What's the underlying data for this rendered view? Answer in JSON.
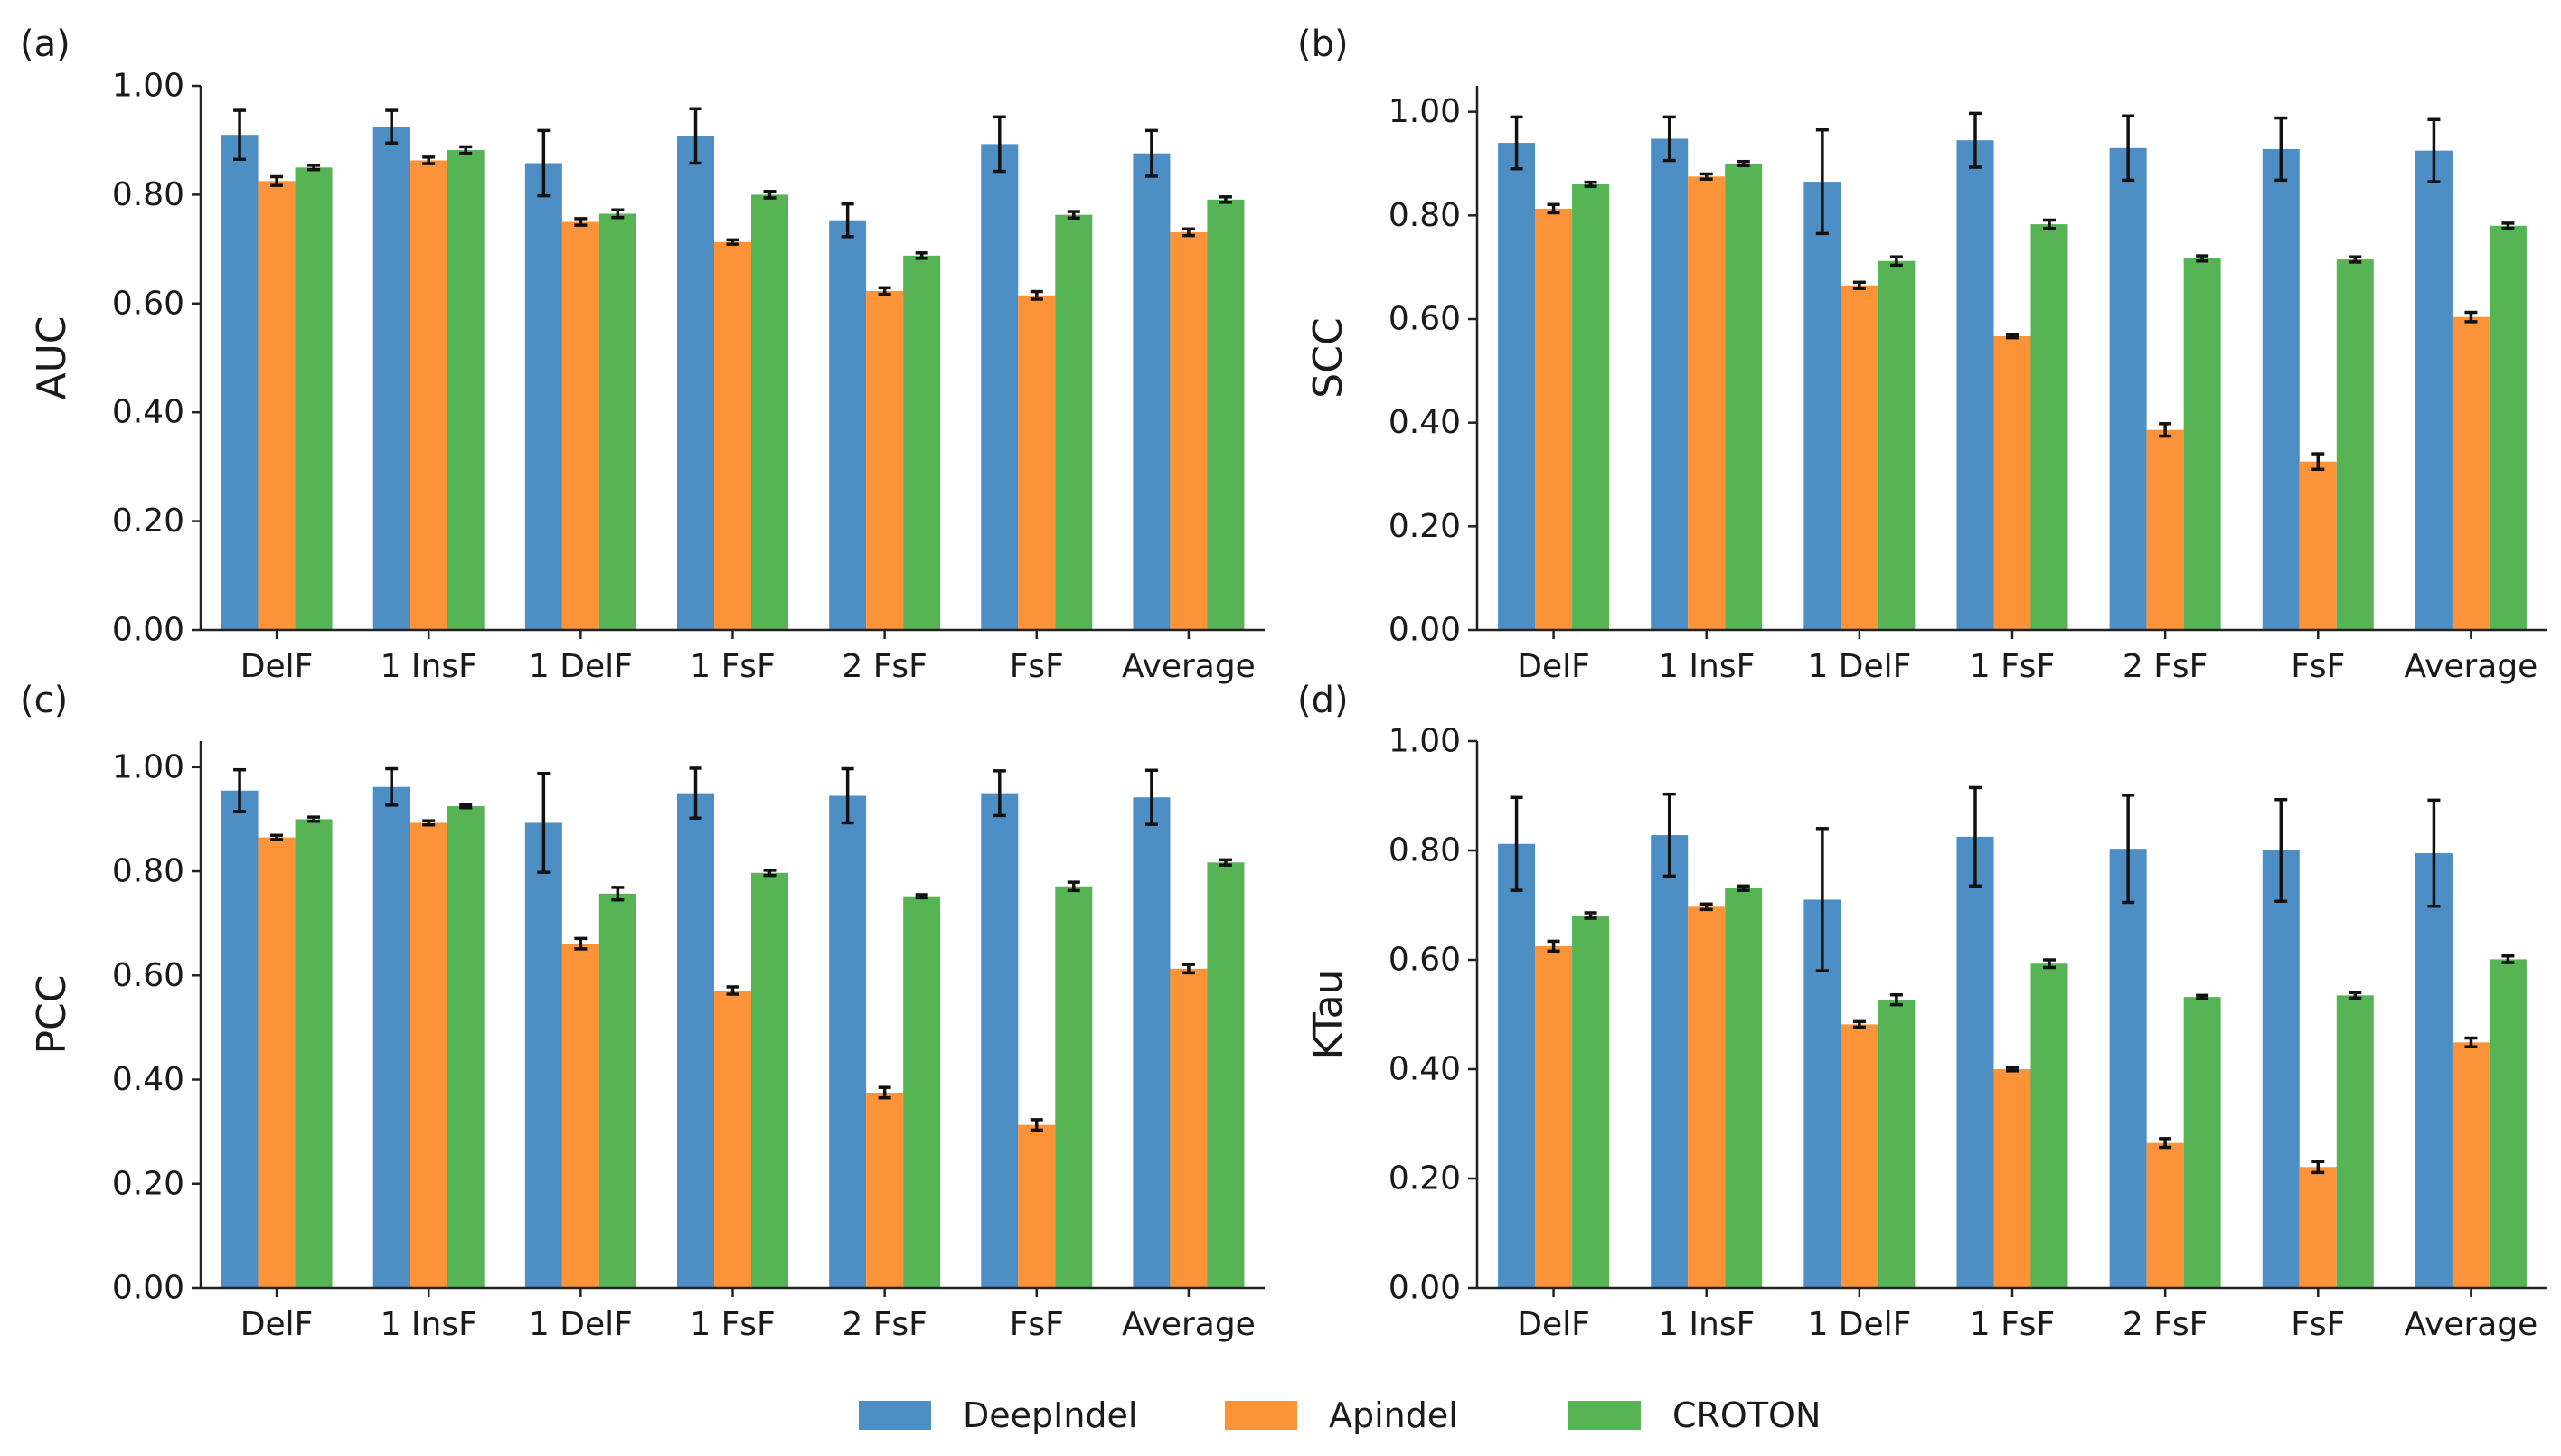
{
  "colors": {
    "DeepIndel": "#4d8fc4",
    "Apindel": "#fc9338",
    "CROTON": "#56b455",
    "axis": "#222222",
    "errorbar": "#111111"
  },
  "legend": [
    {
      "name": "DeepIndel",
      "color": "#4d8fc4"
    },
    {
      "name": "Apindel",
      "color": "#fc9338"
    },
    {
      "name": "CROTON",
      "color": "#56b455"
    }
  ],
  "chart_data": [
    {
      "panel": "(a)",
      "type": "bar",
      "title": "",
      "xlabel": "",
      "ylabel": "AUC",
      "ylim": [
        0,
        1.0
      ],
      "yticks": [
        "0.00",
        "0.20",
        "0.40",
        "0.60",
        "0.80",
        "1.00"
      ],
      "categories": [
        "DelF",
        "1 InsF",
        "1 DelF",
        "1 FsF",
        "2 FsF",
        "FsF",
        "Average"
      ],
      "series": [
        {
          "name": "DeepIndel",
          "values": [
            0.91,
            0.925,
            0.858,
            0.908,
            0.753,
            0.893,
            0.876
          ],
          "errors": [
            0.045,
            0.03,
            0.06,
            0.05,
            0.03,
            0.05,
            0.042
          ]
        },
        {
          "name": "Apindel",
          "values": [
            0.825,
            0.863,
            0.75,
            0.713,
            0.623,
            0.615,
            0.731
          ],
          "errors": [
            0.008,
            0.006,
            0.006,
            0.004,
            0.006,
            0.007,
            0.006
          ]
        },
        {
          "name": "CROTON",
          "values": [
            0.85,
            0.882,
            0.765,
            0.8,
            0.688,
            0.763,
            0.791
          ],
          "errors": [
            0.004,
            0.006,
            0.007,
            0.006,
            0.005,
            0.006,
            0.005
          ]
        }
      ]
    },
    {
      "panel": "(b)",
      "type": "bar",
      "title": "",
      "xlabel": "",
      "ylabel": "SCC",
      "ylim": [
        0,
        1.05
      ],
      "yticks": [
        "0.00",
        "0.20",
        "0.40",
        "0.60",
        "0.80",
        "1.00"
      ],
      "categories": [
        "DelF",
        "1 InsF",
        "1 DelF",
        "1 FsF",
        "2 FsF",
        "FsF",
        "Average"
      ],
      "series": [
        {
          "name": "DeepIndel",
          "values": [
            0.94,
            0.948,
            0.865,
            0.945,
            0.93,
            0.928,
            0.925
          ],
          "errors": [
            0.05,
            0.042,
            0.1,
            0.052,
            0.062,
            0.06,
            0.06
          ]
        },
        {
          "name": "Apindel",
          "values": [
            0.813,
            0.875,
            0.665,
            0.567,
            0.386,
            0.325,
            0.604
          ],
          "errors": [
            0.008,
            0.005,
            0.006,
            0.003,
            0.012,
            0.015,
            0.009
          ]
        },
        {
          "name": "CROTON",
          "values": [
            0.86,
            0.9,
            0.712,
            0.783,
            0.717,
            0.715,
            0.78
          ],
          "errors": [
            0.004,
            0.004,
            0.008,
            0.008,
            0.005,
            0.005,
            0.005
          ]
        }
      ]
    },
    {
      "panel": "(c)",
      "type": "bar",
      "title": "",
      "xlabel": "",
      "ylabel": "PCC",
      "ylim": [
        0,
        1.05
      ],
      "yticks": [
        "0.00",
        "0.20",
        "0.40",
        "0.60",
        "0.80",
        "1.00"
      ],
      "categories": [
        "DelF",
        "1 InsF",
        "1 DelF",
        "1 FsF",
        "2 FsF",
        "FsF",
        "Average"
      ],
      "series": [
        {
          "name": "DeepIndel",
          "values": [
            0.955,
            0.962,
            0.893,
            0.95,
            0.945,
            0.95,
            0.942
          ],
          "errors": [
            0.04,
            0.035,
            0.095,
            0.048,
            0.052,
            0.043,
            0.052
          ]
        },
        {
          "name": "Apindel",
          "values": [
            0.865,
            0.893,
            0.661,
            0.571,
            0.375,
            0.313,
            0.613
          ],
          "errors": [
            0.004,
            0.004,
            0.01,
            0.007,
            0.01,
            0.01,
            0.008
          ]
        },
        {
          "name": "CROTON",
          "values": [
            0.9,
            0.925,
            0.757,
            0.797,
            0.752,
            0.771,
            0.817
          ],
          "errors": [
            0.004,
            0.003,
            0.012,
            0.005,
            0.003,
            0.008,
            0.005
          ]
        }
      ]
    },
    {
      "panel": "(d)",
      "type": "bar",
      "title": "",
      "xlabel": "",
      "ylabel": "KTau",
      "ylim": [
        0,
        1.0
      ],
      "yticks": [
        "0.00",
        "0.20",
        "0.40",
        "0.60",
        "0.80",
        "1.00"
      ],
      "categories": [
        "DelF",
        "1 InsF",
        "1 DelF",
        "1 FsF",
        "2 FsF",
        "FsF",
        "Average"
      ],
      "series": [
        {
          "name": "DeepIndel",
          "values": [
            0.812,
            0.828,
            0.71,
            0.825,
            0.803,
            0.8,
            0.795
          ],
          "errors": [
            0.085,
            0.075,
            0.13,
            0.09,
            0.098,
            0.093,
            0.097
          ]
        },
        {
          "name": "Apindel",
          "values": [
            0.625,
            0.697,
            0.482,
            0.4,
            0.265,
            0.221,
            0.449
          ],
          "errors": [
            0.009,
            0.005,
            0.005,
            0.003,
            0.008,
            0.01,
            0.008
          ]
        },
        {
          "name": "CROTON",
          "values": [
            0.681,
            0.731,
            0.527,
            0.593,
            0.532,
            0.535,
            0.601
          ],
          "errors": [
            0.005,
            0.004,
            0.009,
            0.007,
            0.003,
            0.005,
            0.006
          ]
        }
      ]
    }
  ]
}
